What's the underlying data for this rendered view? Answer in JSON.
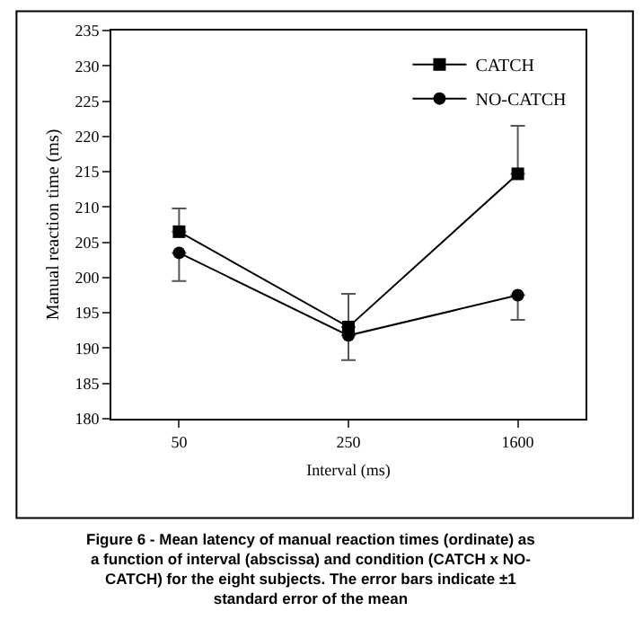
{
  "chart_data": {
    "type": "line",
    "xlabel": "Interval (ms)",
    "ylabel": "Manual reaction time (ms)",
    "categories": [
      "50",
      "250",
      "1600"
    ],
    "series": [
      {
        "name": "CATCH",
        "color": "#000000",
        "marker": "square",
        "values": [
          206.5,
          193,
          214.7
        ],
        "errors": [
          [
            206.5,
            209.8
          ],
          [
            193,
            197.7
          ],
          [
            214.7,
            221.5
          ]
        ]
      },
      {
        "name": "NO-CATCH",
        "color": "#000000",
        "marker": "circle",
        "values": [
          203.5,
          191.8,
          197.5
        ],
        "errors": [
          [
            199.5,
            203.5
          ],
          [
            188.3,
            191.8
          ],
          [
            194,
            197.5
          ]
        ]
      }
    ],
    "ylim": [
      180,
      235
    ],
    "yticks": [
      180,
      185,
      190,
      195,
      200,
      205,
      210,
      215,
      220,
      225,
      230,
      235
    ],
    "legend": "top right",
    "line_style": "solid",
    "annotations": [
      "Figure 6 - Mean latency of manual reaction times (ordinate) as a function of interval (abscissa) and condition (CATCH x NO-CATCH) for the eight subjects. The error bars indicate ±1 standard error of the mean"
    ]
  }
}
